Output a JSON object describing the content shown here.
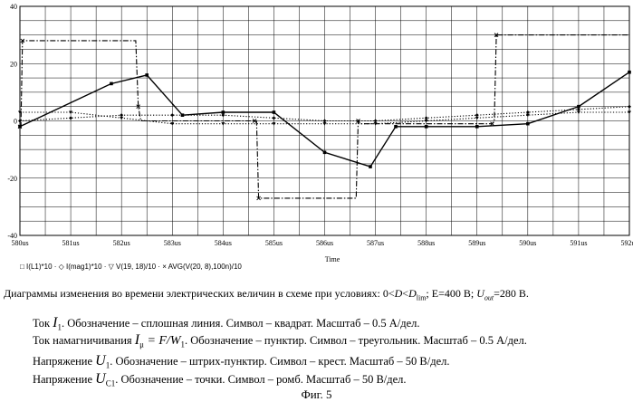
{
  "chart_data": {
    "type": "line",
    "xlabel": "Time",
    "ylim": [
      -40,
      40
    ],
    "xlim": [
      580,
      592
    ],
    "x_ticks": [
      {
        "v": 580,
        "label": "580us"
      },
      {
        "v": 581,
        "label": "581us"
      },
      {
        "v": 582,
        "label": "582us"
      },
      {
        "v": 583,
        "label": "583us"
      },
      {
        "v": 584,
        "label": "584us"
      },
      {
        "v": 585,
        "label": "585us"
      },
      {
        "v": 586,
        "label": "586us"
      },
      {
        "v": 587,
        "label": "587us"
      },
      {
        "v": 588,
        "label": "588us"
      },
      {
        "v": 589,
        "label": "589us"
      },
      {
        "v": 590,
        "label": "590us"
      },
      {
        "v": 591,
        "label": "591us"
      },
      {
        "v": 592,
        "label": "592us"
      }
    ],
    "y_ticks": [
      {
        "v": 40,
        "label": "40"
      },
      {
        "v": 20,
        "label": "20"
      },
      {
        "v": 0,
        "label": "0"
      },
      {
        "v": -20,
        "label": "-20"
      },
      {
        "v": -40,
        "label": "-40"
      }
    ],
    "grid": true,
    "legend": "□ I(L1)*10 · ◇ I(mag1)*10 · ▽ V(19, 18)/10 · × AVG(V(20, 8),100n)/10",
    "series": [
      {
        "name": "I(L1)*10",
        "style": "solid",
        "marker": "square",
        "x": [
          580,
          581.8,
          582.5,
          583.2,
          584,
          585,
          586,
          586.9,
          587.4,
          588,
          589,
          590,
          591,
          592
        ],
        "y": [
          -2,
          13,
          16,
          2,
          3,
          3,
          -11,
          -16,
          -2,
          -2,
          -2,
          -1,
          5,
          17
        ]
      },
      {
        "name": "I(mag1)*10",
        "style": "dotted",
        "marker": "triangle",
        "x": [
          580,
          581,
          582,
          583,
          584,
          585,
          586,
          587,
          588,
          589,
          590,
          591,
          592
        ],
        "y": [
          3,
          3,
          1,
          -1,
          -1,
          -1,
          -1,
          -1,
          0,
          1,
          2,
          3,
          3
        ]
      },
      {
        "name": "V(19, 18)/10",
        "style": "dashdot",
        "marker": "cross",
        "x": [
          580,
          580.02,
          580.05,
          582.28,
          582.33,
          582.38,
          584.62,
          584.66,
          584.7,
          586.62,
          586.66,
          586.7,
          589.3,
          589.34,
          589.38,
          592
        ],
        "y": [
          -2,
          -2,
          28,
          28,
          5,
          0,
          0,
          0,
          -27,
          -27,
          0,
          -1,
          -1,
          0,
          30,
          30
        ]
      },
      {
        "name": "AVG(V(20, 8),100n)/10",
        "style": "dotted",
        "marker": "diamond",
        "x": [
          580,
          581,
          582,
          583,
          584,
          585,
          586,
          587,
          588,
          589,
          590,
          591,
          592
        ],
        "y": [
          0,
          1,
          2,
          2,
          2,
          1,
          0,
          0,
          1,
          2,
          3,
          4,
          5
        ]
      }
    ]
  },
  "text": {
    "conditions_prefix": "Диаграммы изменения во времени электрических величин в схеме при условиях: 0<",
    "conditions_D": "D",
    "conditions_lt": "<",
    "conditions_Dlim": "D",
    "conditions_Dlim_sub": "lim",
    "conditions_E": "; E",
    "conditions_E_val": "=400 В;",
    "conditions_U": "U",
    "conditions_U_sub": "out",
    "conditions_U_val": "=280 В.",
    "line1_pre": "Ток ",
    "line1_sym": "I",
    "line1_sub": "1",
    "line1_post": ". Обозначение – сплошная линия. Символ – квадрат. Масштаб – 0.5 А/дел.",
    "line2_pre": "Ток намагничивания ",
    "line2_sym": "I",
    "line2_sub": "μ",
    "line2_eq": " = F/W",
    "line2_eq_sub": "1",
    "line2_post": ". Обозначение – пунктир. Символ – треугольник. Масштаб – 0.5 А/дел.",
    "line3_pre": "Напряжение ",
    "line3_sym": "U",
    "line3_sub": "1",
    "line3_post": ". Обозначение – штрих-пунктир. Символ – крест. Масштаб – 50 В/дел.",
    "line4_pre": "Напряжение ",
    "line4_sym": "U",
    "line4_sub": "C1",
    "line4_post": ". Обозначение – точки. Символ – ромб. Масштаб – 50 В/дел.",
    "figure_caption": "Фиг. 5"
  }
}
